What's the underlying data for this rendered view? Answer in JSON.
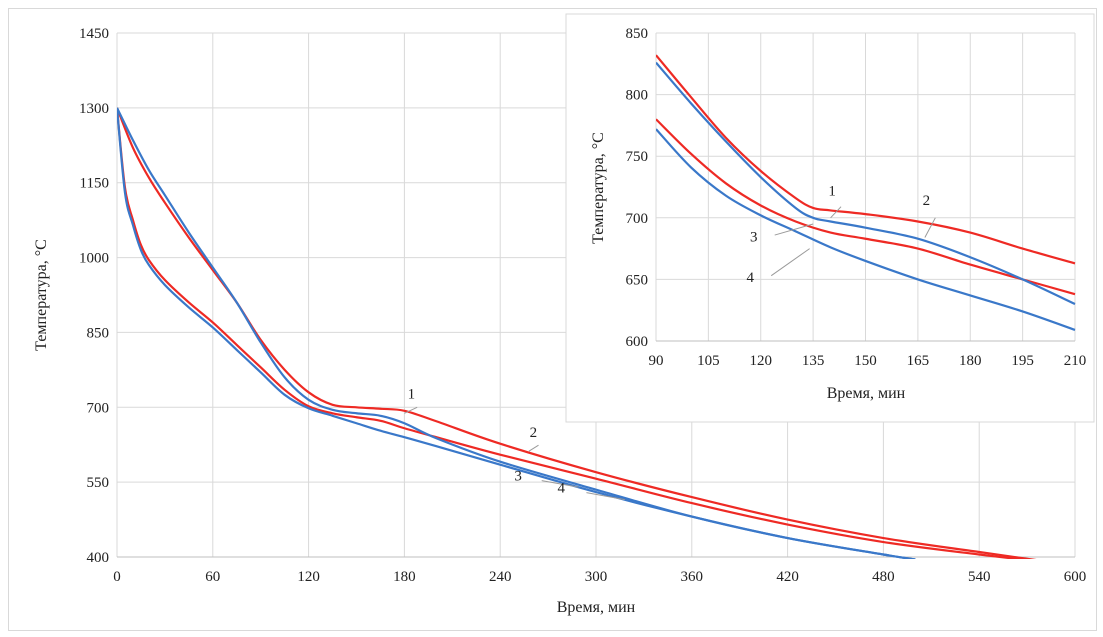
{
  "chart_data": [
    {
      "type": "line",
      "title": "",
      "xlabel": "Время, мин",
      "ylabel": "Температура, °C",
      "xlim": [
        0,
        600
      ],
      "ylim": [
        400,
        1450
      ],
      "xticks": [
        "0",
        "60",
        "120",
        "180",
        "240",
        "300",
        "360",
        "420",
        "480",
        "540",
        "600"
      ],
      "yticks": [
        "400",
        "550",
        "700",
        "850",
        "1000",
        "1150",
        "1300",
        "1450"
      ],
      "grid": true,
      "legend": "none",
      "colors": {
        "red": "#ee2a24",
        "blue": "#3a78c9"
      },
      "series": [
        {
          "label": "1",
          "color": "#ee2a24",
          "x": [
            0,
            10,
            20,
            30,
            45,
            60,
            75,
            90,
            105,
            120,
            135,
            150,
            165,
            180,
            200,
            240,
            300,
            360,
            420,
            480,
            540,
            600
          ],
          "y": [
            1300,
            1220,
            1160,
            1110,
            1040,
            975,
            910,
            835,
            775,
            730,
            705,
            700,
            697,
            693,
            672,
            627,
            570,
            520,
            475,
            438,
            410,
            383
          ]
        },
        {
          "label": "2",
          "color": "#ee2a24",
          "x": [
            0,
            5,
            10,
            15,
            20,
            30,
            45,
            60,
            75,
            90,
            105,
            120,
            135,
            150,
            165,
            180,
            200,
            240,
            300,
            360,
            420,
            480,
            540,
            600
          ],
          "y": [
            1300,
            1140,
            1075,
            1025,
            995,
            955,
            910,
            870,
            825,
            780,
            735,
            702,
            688,
            680,
            673,
            658,
            640,
            605,
            557,
            508,
            465,
            430,
            405,
            383
          ]
        },
        {
          "label": "3",
          "color": "#3a78c9",
          "x": [
            0,
            5,
            10,
            15,
            20,
            30,
            45,
            60,
            75,
            90,
            105,
            120,
            135,
            150,
            165,
            180,
            200,
            240,
            300,
            360,
            420,
            480,
            500
          ],
          "y": [
            1300,
            1130,
            1065,
            1015,
            985,
            945,
            900,
            860,
            815,
            770,
            725,
            698,
            683,
            668,
            653,
            640,
            622,
            585,
            530,
            481,
            438,
            405,
            395
          ]
        },
        {
          "label": "4",
          "color": "#3a78c9",
          "x": [
            0,
            10,
            20,
            30,
            45,
            60,
            75,
            90,
            105,
            120,
            135,
            150,
            165,
            180,
            200,
            240,
            300,
            360,
            420,
            480,
            500
          ],
          "y": [
            1300,
            1235,
            1175,
            1125,
            1050,
            980,
            910,
            830,
            760,
            715,
            695,
            688,
            683,
            668,
            638,
            591,
            535,
            481,
            438,
            405,
            395
          ]
        }
      ],
      "annotations": [
        {
          "text": "1",
          "at": [
            185,
            706
          ]
        },
        {
          "text": "2",
          "at": [
            262,
            628
          ]
        },
        {
          "text": "3",
          "at": [
            265,
            557
          ]
        },
        {
          "text": "4",
          "at": [
            292,
            533
          ]
        }
      ]
    },
    {
      "type": "line",
      "title": "",
      "xlabel": "Время, мин",
      "ylabel": "Температура, °C",
      "xlim": [
        90,
        210
      ],
      "ylim": [
        600,
        850
      ],
      "xticks": [
        "90",
        "105",
        "120",
        "135",
        "150",
        "165",
        "180",
        "195",
        "210"
      ],
      "yticks": [
        "600",
        "650",
        "700",
        "750",
        "800",
        "850"
      ],
      "grid": true,
      "legend": "none",
      "placement": "inset-top-right",
      "series": [
        {
          "label": "1",
          "color": "#ee2a24",
          "x": [
            90,
            100,
            110,
            120,
            130,
            135,
            140,
            150,
            165,
            180,
            195,
            210
          ],
          "y": [
            832,
            798,
            765,
            738,
            716,
            708,
            706,
            703,
            697,
            688,
            675,
            663
          ]
        },
        {
          "label": "2",
          "color": "#ee2a24",
          "x": [
            90,
            100,
            110,
            120,
            130,
            140,
            150,
            165,
            180,
            195,
            210
          ],
          "y": [
            780,
            752,
            728,
            710,
            697,
            688,
            683,
            675,
            662,
            650,
            638
          ]
        },
        {
          "label": "3",
          "color": "#3a78c9",
          "x": [
            90,
            100,
            110,
            120,
            130,
            140,
            150,
            165,
            180,
            195,
            210
          ],
          "y": [
            772,
            741,
            718,
            702,
            689,
            676,
            665,
            650,
            637,
            624,
            609
          ]
        },
        {
          "label": "4",
          "color": "#3a78c9",
          "x": [
            90,
            100,
            110,
            120,
            130,
            135,
            140,
            150,
            165,
            180,
            195,
            210
          ],
          "y": [
            826,
            793,
            762,
            733,
            708,
            700,
            697,
            692,
            683,
            668,
            650,
            630
          ]
        }
      ],
      "annotations": [
        {
          "text": "1",
          "at": [
            141,
            715
          ]
        },
        {
          "text": "2",
          "at": [
            168,
            707
          ]
        },
        {
          "text": "3",
          "at": [
            122,
            684
          ]
        },
        {
          "text": "4",
          "at": [
            121,
            651
          ]
        }
      ]
    }
  ]
}
